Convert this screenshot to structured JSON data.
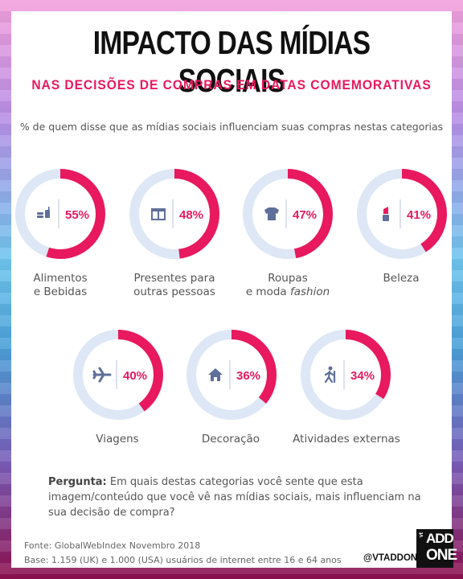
{
  "header": {
    "title": "IMPACTO DAS MÍDIAS SOCIAIS",
    "subtitle": "NAS DECISÕES DE COMPRAS EM DATAS COMEMORATIVAS",
    "lead": "% de quem disse que as mídias sociais influenciam suas compras nestas categorias"
  },
  "colors": {
    "accent": "#e8195e",
    "ring_bg": "#dde7f5",
    "icon": "#5f6f9a"
  },
  "chart_data": {
    "type": "donut",
    "title": "IMPACTO DAS MÍDIAS SOCIAIS",
    "subtitle": "NAS DECISÕES DE COMPRAS EM DATAS COMEMORATIVAS",
    "unit": "%",
    "categories": [
      {
        "key": "alimentos",
        "label_line1": "Alimentos",
        "label_line2": "e Bebidas",
        "label_emph": "",
        "value": 55,
        "value_label": "55%",
        "icon": "food-icon"
      },
      {
        "key": "presentes",
        "label_line1": "Presentes para",
        "label_line2": "outras pessoas",
        "label_emph": "",
        "value": 48,
        "value_label": "48%",
        "icon": "gift-icon"
      },
      {
        "key": "roupas",
        "label_line1": "Roupas",
        "label_line2": "e moda",
        "label_emph": "fashion",
        "value": 47,
        "value_label": "47%",
        "icon": "shirt-icon"
      },
      {
        "key": "beleza",
        "label_line1": "Beleza",
        "label_line2": "",
        "label_emph": "",
        "value": 41,
        "value_label": "41%",
        "icon": "lipstick-icon"
      },
      {
        "key": "viagens",
        "label_line1": "Viagens",
        "label_line2": "",
        "label_emph": "",
        "value": 40,
        "value_label": "40%",
        "icon": "airplane-icon"
      },
      {
        "key": "decoracao",
        "label_line1": "Decoração",
        "label_line2": "",
        "label_emph": "",
        "value": 36,
        "value_label": "36%",
        "icon": "house-icon"
      },
      {
        "key": "atividades",
        "label_line1": "Atividades externas",
        "label_line2": "",
        "label_emph": "",
        "value": 34,
        "value_label": "34%",
        "icon": "hiker-icon"
      }
    ]
  },
  "footer": {
    "question_prefix": "Pergunta:",
    "question_text": " Em quais destas categorias você sente que esta imagem/conteúdo que você vê nas mídias sociais, mais influenciam na sua decisão de compra?",
    "source": "Fonte: GlobalWebIndex Novembro 2018",
    "base": "Base: 1.159 (UK) e 1.000 (USA) usuários de internet entre 16 e 64 anos",
    "handle": "@VTADDONE",
    "logo_vt": "vt",
    "logo_add": "ADD",
    "logo_one": "ONE"
  }
}
